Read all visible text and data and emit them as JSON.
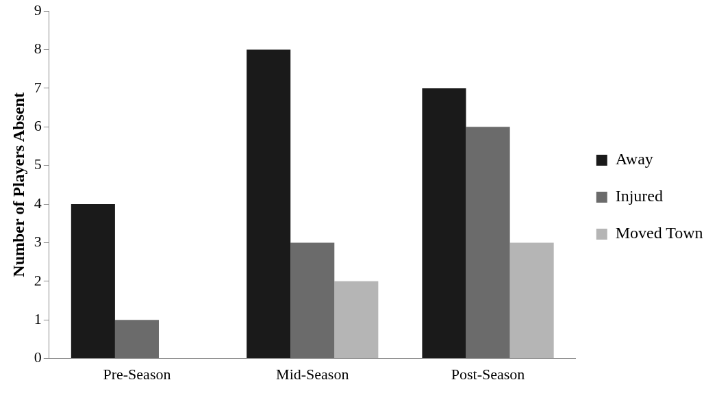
{
  "chart_data": {
    "type": "bar",
    "ylabel": "Number of Players Absent",
    "categories": [
      "Pre-Season",
      "Mid-Season",
      "Post-Season"
    ],
    "series": [
      {
        "name": "Away",
        "color": "#1a1a1a",
        "values": [
          4,
          8,
          7
        ]
      },
      {
        "name": "Injured",
        "color": "#6b6b6b",
        "values": [
          1,
          3,
          6
        ]
      },
      {
        "name": "Moved Town",
        "color": "#b5b5b5",
        "values": [
          0,
          2,
          3
        ]
      }
    ],
    "ylim": [
      0,
      9
    ],
    "yticks": [
      0,
      1,
      2,
      3,
      4,
      5,
      6,
      7,
      8,
      9
    ],
    "grid": false,
    "legend": "right"
  }
}
